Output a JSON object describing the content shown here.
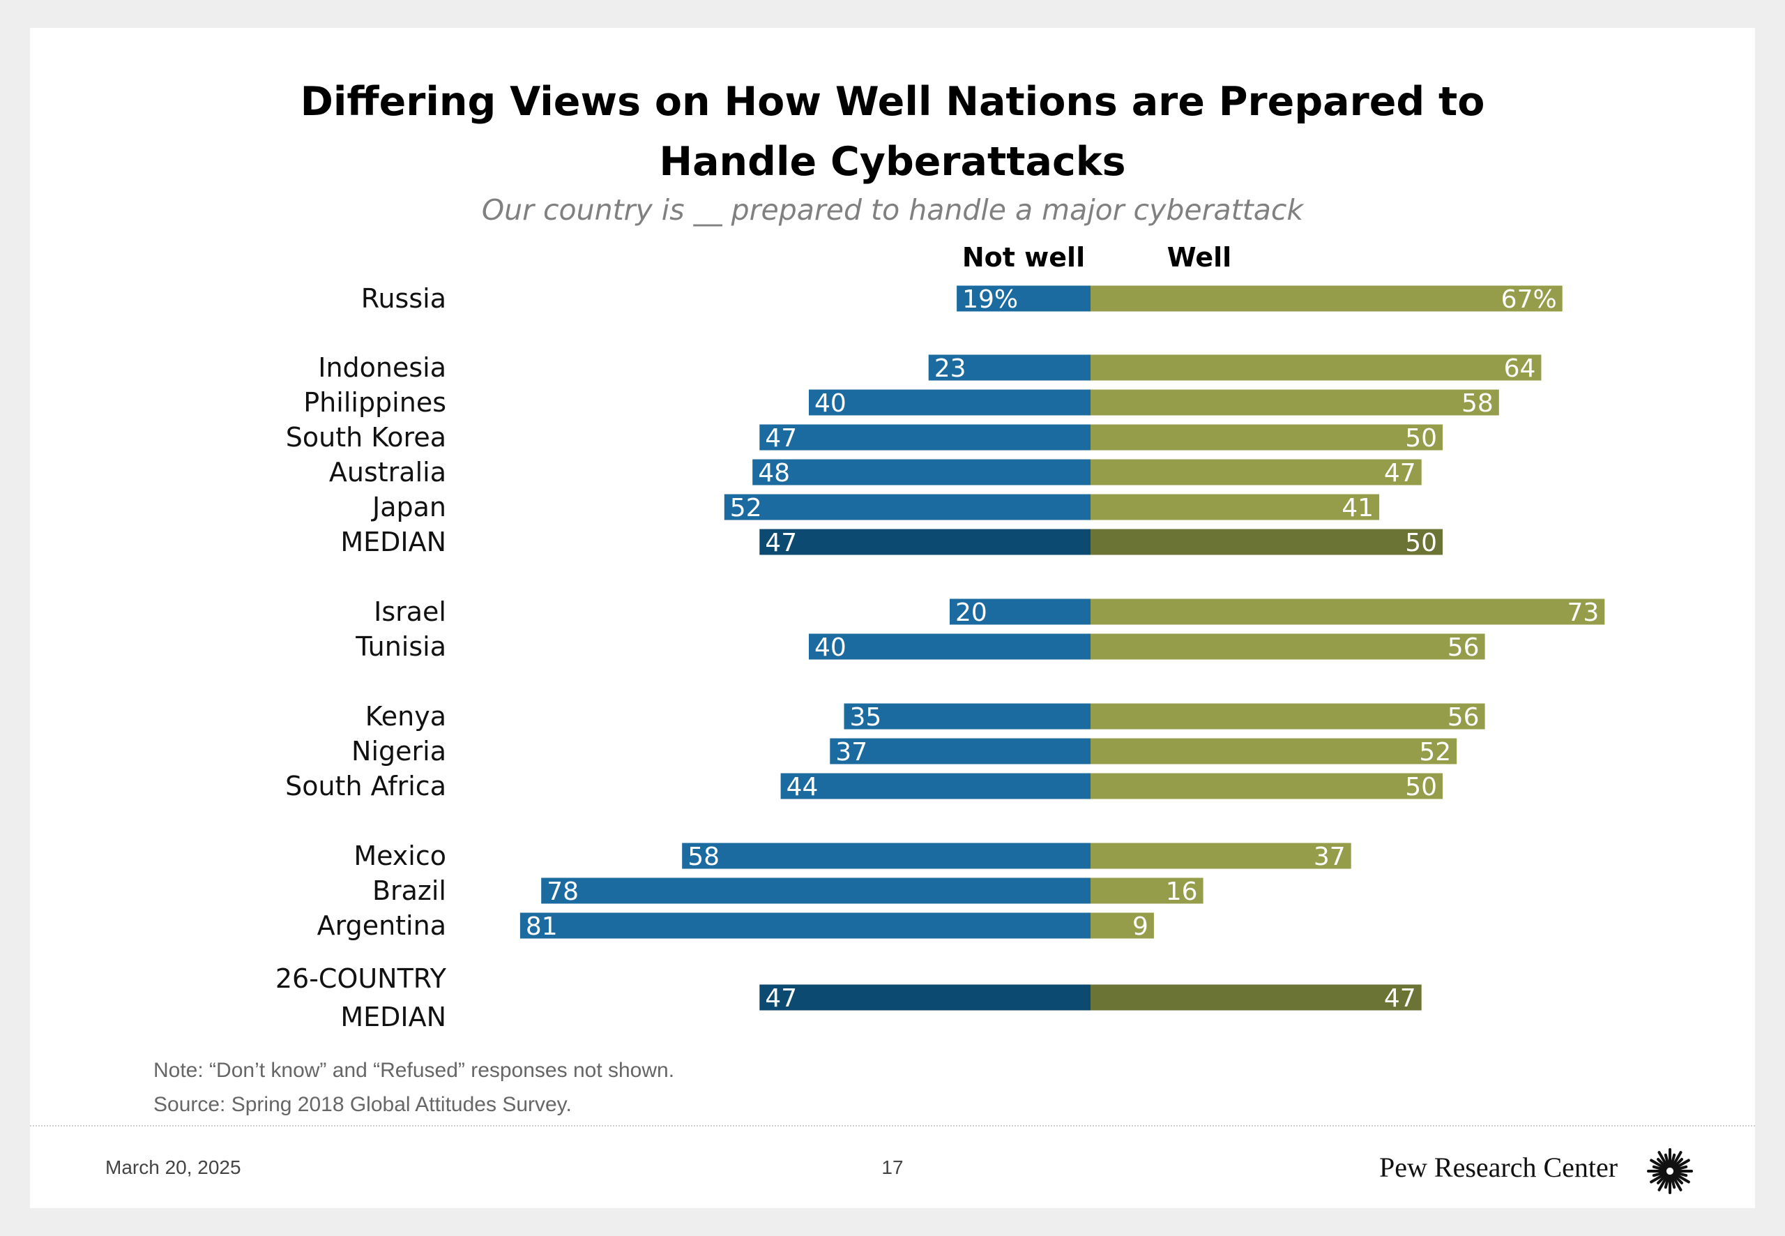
{
  "chart_data": {
    "type": "bar",
    "title": "Differing Views on How Well Nations are Prepared to Handle Cyberattacks",
    "subtitle": "Our country is __ prepared to handle a major cyberattack",
    "series_names": [
      "Not well",
      "Well"
    ],
    "colors": {
      "not_well": "#1b6ba1",
      "well": "#959c4a",
      "median_not_well": "#0d4a72",
      "median_well": "#6b7335"
    },
    "rows": [
      {
        "label": "Russia",
        "not_well": 19,
        "well": 67,
        "not_well_text": "19%",
        "well_text": "67%",
        "median": false
      },
      {
        "label": "Indonesia",
        "not_well": 23,
        "well": 64,
        "not_well_text": "23",
        "well_text": "64",
        "median": false
      },
      {
        "label": "Philippines",
        "not_well": 40,
        "well": 58,
        "not_well_text": "40",
        "well_text": "58",
        "median": false
      },
      {
        "label": "South Korea",
        "not_well": 47,
        "well": 50,
        "not_well_text": "47",
        "well_text": "50",
        "median": false
      },
      {
        "label": "Australia",
        "not_well": 48,
        "well": 47,
        "not_well_text": "48",
        "well_text": "47",
        "median": false
      },
      {
        "label": "Japan",
        "not_well": 52,
        "well": 41,
        "not_well_text": "52",
        "well_text": "41",
        "median": false
      },
      {
        "label": "MEDIAN",
        "not_well": 47,
        "well": 50,
        "not_well_text": "47",
        "well_text": "50",
        "median": true
      },
      {
        "label": "Israel",
        "not_well": 20,
        "well": 73,
        "not_well_text": "20",
        "well_text": "73",
        "median": false
      },
      {
        "label": "Tunisia",
        "not_well": 40,
        "well": 56,
        "not_well_text": "40",
        "well_text": "56",
        "median": false
      },
      {
        "label": "Kenya",
        "not_well": 35,
        "well": 56,
        "not_well_text": "35",
        "well_text": "56",
        "median": false
      },
      {
        "label": "Nigeria",
        "not_well": 37,
        "well": 52,
        "not_well_text": "37",
        "well_text": "52",
        "median": false
      },
      {
        "label": "South Africa",
        "not_well": 44,
        "well": 50,
        "not_well_text": "44",
        "well_text": "50",
        "median": false
      },
      {
        "label": "Mexico",
        "not_well": 58,
        "well": 37,
        "not_well_text": "58",
        "well_text": "37",
        "median": false
      },
      {
        "label": "Brazil",
        "not_well": 78,
        "well": 16,
        "not_well_text": "78",
        "well_text": "16",
        "median": false
      },
      {
        "label": "Argentina",
        "not_well": 81,
        "well": 9,
        "not_well_text": "81",
        "well_text": "9",
        "median": false
      },
      {
        "label": "26-COUNTRY MEDIAN",
        "not_well": 47,
        "well": 47,
        "not_well_text": "47",
        "well_text": "47",
        "median": true
      }
    ]
  },
  "notes": {
    "note": "Note: “Don’t know” and “Refused” responses not shown.",
    "source": "Source: Spring 2018 Global Attitudes Survey."
  },
  "footer": {
    "date": "March 20, 2025",
    "page": "17",
    "brand": "Pew Research Center",
    "logo_icon": "pew-sunburst-icon"
  }
}
